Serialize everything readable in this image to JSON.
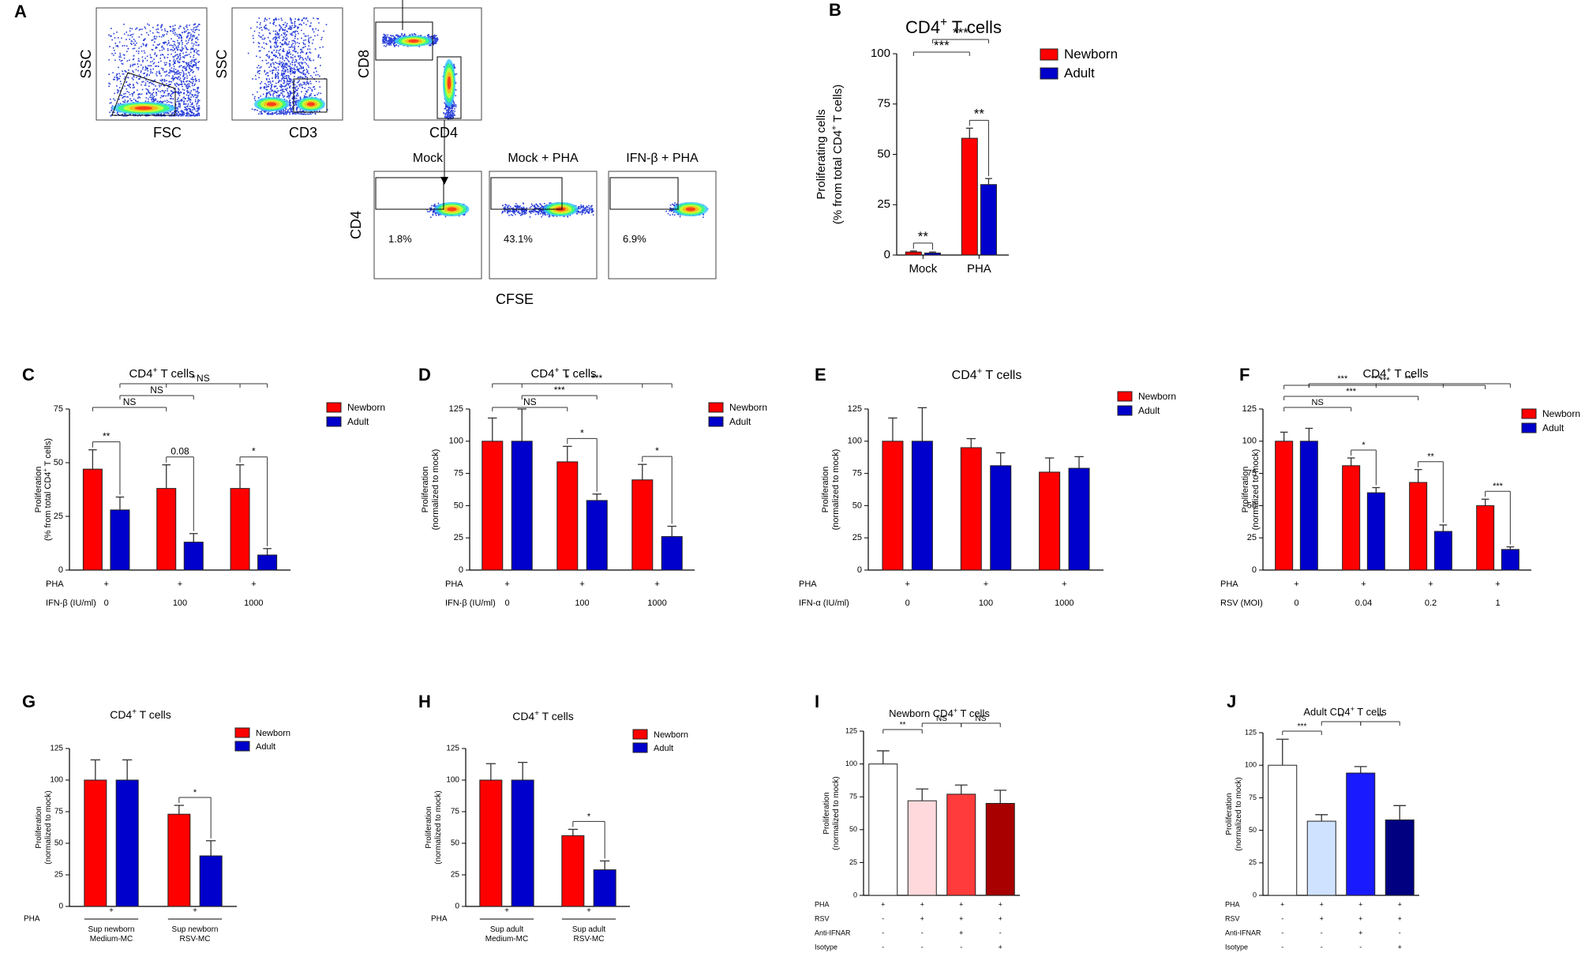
{
  "colors": {
    "newborn": "#ff0000",
    "adult": "#0000cc",
    "white": "#ffffff",
    "light_pink": "#ffd9dc",
    "bright_red": "#ff3b3b",
    "dark_red": "#a80000",
    "light_blue": "#cfe2ff",
    "bright_blue": "#1a1aff",
    "navy": "#000080"
  },
  "flow_panel": {
    "label": "A",
    "plots": [
      {
        "x_label": "FSC",
        "y_label": "SSC"
      },
      {
        "x_label": "CD3",
        "y_label": "SSC"
      },
      {
        "x_label": "CD4",
        "y_label": "CD8"
      }
    ],
    "sub_titles": [
      "Mock",
      "Mock + PHA",
      "IFN-β + PHA"
    ],
    "percentages": [
      "1.8%",
      "43.1%",
      "6.9%"
    ],
    "bottom_y_label": "CD4",
    "bottom_x_label": "CFSE"
  },
  "chart_data": [
    {
      "id": "B",
      "label": "B",
      "type": "bar",
      "title": "CD4",
      "title_sup": "+",
      "title_after": " T cells",
      "ylabel": "Proliferating cells",
      "ylabel2_pre": "(% from total CD4",
      "ylabel2_sup": "+",
      "ylabel2_post": " T cells)",
      "ylim": [
        0,
        100
      ],
      "yticks": [
        "0",
        "25",
        "50",
        "75",
        "100"
      ],
      "groups": [
        "Mock",
        "PHA"
      ],
      "series": [
        {
          "name": "Newborn",
          "values": [
            1.5,
            58
          ],
          "errors": [
            0.5,
            5
          ]
        },
        {
          "name": "Adult",
          "values": [
            1.0,
            35
          ],
          "errors": [
            0.5,
            3
          ]
        }
      ],
      "significance": [
        {
          "text": "**",
          "from": "0.0",
          "to": "0.1"
        },
        {
          "text": "***",
          "from": "0.0",
          "to": "1.0"
        },
        {
          "text": "***",
          "from": "0.1",
          "to": "1.1"
        },
        {
          "text": "**",
          "from": "1.0",
          "to": "1.1"
        }
      ]
    },
    {
      "id": "C",
      "label": "C",
      "type": "bar",
      "title": "CD4",
      "title_sup": "+",
      "title_after": " T cells",
      "ylabel": "Proliferation",
      "ylabel2_pre": "(% from total CD4",
      "ylabel2_sup": "+",
      "ylabel2_post": " T cells)",
      "ylim": [
        0,
        75
      ],
      "yticks": [
        "0",
        "25",
        "50",
        "75"
      ],
      "condition_rows": [
        {
          "name": "PHA",
          "values": [
            "+",
            "+",
            "+"
          ]
        },
        {
          "name": "IFN-β (IU/ml)",
          "values": [
            "0",
            "100",
            "1000"
          ]
        }
      ],
      "series": [
        {
          "name": "Newborn",
          "values": [
            47,
            38,
            38
          ],
          "errors": [
            9,
            11,
            11
          ]
        },
        {
          "name": "Adult",
          "values": [
            28,
            13,
            7
          ],
          "errors": [
            6,
            4,
            3
          ]
        }
      ],
      "significance": [
        {
          "text": "**",
          "from": "0.0",
          "to": "0.1"
        },
        {
          "text": "0.08",
          "from": "1.0",
          "to": "1.1"
        },
        {
          "text": "*",
          "from": "2.0",
          "to": "2.1"
        },
        {
          "text": "NS",
          "from": "0.0",
          "to": "1.0"
        },
        {
          "text": "NS",
          "from": "0.1",
          "to": "1.1"
        },
        {
          "text": "NS",
          "from": "1.0",
          "to": "2.0"
        },
        {
          "text": "*",
          "from": "0.1",
          "to": "2.1"
        }
      ]
    },
    {
      "id": "D",
      "label": "D",
      "type": "bar",
      "title": "CD4",
      "title_sup": "+",
      "title_after": " T cells",
      "ylabel": "Proliferation",
      "ylabel2_pre": "(normalized to mock)",
      "ylabel2_sup": "",
      "ylabel2_post": "",
      "ylim": [
        0,
        125
      ],
      "yticks": [
        "0",
        "25",
        "50",
        "75",
        "100",
        "125"
      ],
      "condition_rows": [
        {
          "name": "PHA",
          "values": [
            "+",
            "+",
            "+"
          ]
        },
        {
          "name": "IFN-β (IU/ml)",
          "values": [
            "0",
            "100",
            "1000"
          ]
        }
      ],
      "series": [
        {
          "name": "Newborn",
          "values": [
            100,
            84,
            70
          ],
          "errors": [
            18,
            12,
            12
          ]
        },
        {
          "name": "Adult",
          "values": [
            100,
            54,
            26
          ],
          "errors": [
            25,
            5,
            8
          ]
        }
      ],
      "significance": [
        {
          "text": "*",
          "from": "1.0",
          "to": "1.1"
        },
        {
          "text": "*",
          "from": "2.0",
          "to": "2.1"
        },
        {
          "text": "NS",
          "from": "0.0",
          "to": "1.0"
        },
        {
          "text": "***",
          "from": "0.1",
          "to": "1.1"
        },
        {
          "text": "***",
          "from": "0.1",
          "to": "2.1"
        },
        {
          "text": "*",
          "from": "0.0",
          "to": "2.0"
        }
      ]
    },
    {
      "id": "E",
      "label": "E",
      "type": "bar",
      "title": "CD4",
      "title_sup": "+",
      "title_after": " T cells",
      "ylabel": "Proliferation",
      "ylabel2_pre": "(normalized to mock)",
      "ylabel2_sup": "",
      "ylabel2_post": "",
      "ylim": [
        0,
        125
      ],
      "yticks": [
        "0",
        "25",
        "50",
        "75",
        "100",
        "125"
      ],
      "condition_rows": [
        {
          "name": "PHA",
          "values": [
            "+",
            "+",
            "+"
          ]
        },
        {
          "name": "IFN-α (IU/ml)",
          "values": [
            "0",
            "100",
            "1000"
          ]
        }
      ],
      "series": [
        {
          "name": "Newborn",
          "values": [
            100,
            95,
            76
          ],
          "errors": [
            18,
            7,
            11
          ]
        },
        {
          "name": "Adult",
          "values": [
            100,
            81,
            79
          ],
          "errors": [
            26,
            10,
            9
          ]
        }
      ],
      "significance": []
    },
    {
      "id": "F",
      "label": "F",
      "type": "bar",
      "title": "CD4",
      "title_sup": "+",
      "title_after": " T cells",
      "ylabel": "Proliferation",
      "ylabel2_pre": "(normalized to mock)",
      "ylabel2_sup": "",
      "ylabel2_post": "",
      "ylim": [
        0,
        125
      ],
      "yticks": [
        "0",
        "25",
        "50",
        "75",
        "100",
        "125"
      ],
      "condition_rows": [
        {
          "name": "PHA",
          "values": [
            "+",
            "+",
            "+",
            "+"
          ]
        },
        {
          "name": "RSV (MOI)",
          "values": [
            "0",
            "0.04",
            "0.2",
            "1"
          ]
        }
      ],
      "series": [
        {
          "name": "Newborn",
          "values": [
            100,
            81,
            68,
            50
          ],
          "errors": [
            7,
            6,
            10,
            5
          ]
        },
        {
          "name": "Adult",
          "values": [
            100,
            60,
            30,
            16
          ],
          "errors": [
            10,
            4,
            5,
            2
          ]
        }
      ],
      "significance": [
        {
          "text": "*",
          "from": "1.0",
          "to": "1.1"
        },
        {
          "text": "**",
          "from": "2.0",
          "to": "2.1"
        },
        {
          "text": "***",
          "from": "3.0",
          "to": "3.1"
        },
        {
          "text": "NS",
          "from": "0.0",
          "to": "1.0"
        },
        {
          "text": "***",
          "from": "0.0",
          "to": "2.0"
        },
        {
          "text": "***",
          "from": "0.0",
          "to": "3.0"
        },
        {
          "text": "***",
          "from": "0.1",
          "to": "1.1"
        },
        {
          "text": "***",
          "from": "0.1",
          "to": "2.1"
        },
        {
          "text": "***",
          "from": "0.1",
          "to": "3.1"
        }
      ]
    },
    {
      "id": "G",
      "label": "G",
      "type": "bar",
      "title": "CD4",
      "title_sup": "+",
      "title_after": " T cells",
      "ylabel": "Proliferation",
      "ylabel2_pre": "(normalized to mock)",
      "ylabel2_sup": "",
      "ylabel2_post": "",
      "ylim": [
        0,
        125
      ],
      "yticks": [
        "0",
        "25",
        "50",
        "75",
        "100",
        "125"
      ],
      "pha_row": {
        "name": "PHA",
        "values": [
          "+",
          "+"
        ]
      },
      "group_labels": [
        [
          "Sup newborn",
          "Medium-MC"
        ],
        [
          "Sup newborn",
          "RSV-MC"
        ]
      ],
      "series": [
        {
          "name": "Newborn",
          "values": [
            100,
            73
          ],
          "errors": [
            16,
            7
          ]
        },
        {
          "name": "Adult",
          "values": [
            100,
            40
          ],
          "errors": [
            16,
            12
          ]
        }
      ],
      "significance": [
        {
          "text": "*",
          "from": "1.0",
          "to": "1.1"
        }
      ]
    },
    {
      "id": "H",
      "label": "H",
      "type": "bar",
      "title": "CD4",
      "title_sup": "+",
      "title_after": " T cells",
      "ylabel": "Proliferation",
      "ylabel2_pre": "(normalized to mock)",
      "ylabel2_sup": "",
      "ylabel2_post": "",
      "ylim": [
        0,
        125
      ],
      "yticks": [
        "0",
        "25",
        "50",
        "75",
        "100",
        "125"
      ],
      "pha_row": {
        "name": "PHA",
        "values": [
          "+",
          "+"
        ]
      },
      "group_labels": [
        [
          "Sup adult",
          "Medium-MC"
        ],
        [
          "Sup adult",
          "RSV-MC"
        ]
      ],
      "series": [
        {
          "name": "Newborn",
          "values": [
            100,
            56
          ],
          "errors": [
            13,
            5
          ]
        },
        {
          "name": "Adult",
          "values": [
            100,
            29
          ],
          "errors": [
            14,
            7
          ]
        }
      ],
      "significance": [
        {
          "text": "*",
          "from": "1.0",
          "to": "1.1"
        }
      ]
    },
    {
      "id": "I",
      "label": "I",
      "type": "bar",
      "title": "Newborn CD4",
      "title_sup": "+",
      "title_after": " T cells",
      "ylabel": "Proliferation",
      "ylabel2_pre": "(normalized to mock)",
      "ylabel2_sup": "",
      "ylabel2_post": "",
      "ylim": [
        0,
        125
      ],
      "yticks": [
        "0",
        "25",
        "50",
        "75",
        "100",
        "125"
      ],
      "bars": [
        {
          "value": 100,
          "error": 10,
          "color": "#ffffff"
        },
        {
          "value": 72,
          "error": 9,
          "color": "#ffd9dc"
        },
        {
          "value": 77,
          "error": 7,
          "color": "#ff3b3b"
        },
        {
          "value": 70,
          "error": 10,
          "color": "#a80000"
        }
      ],
      "condition_rows": [
        {
          "name": "PHA",
          "values": [
            "+",
            "+",
            "+",
            "+"
          ]
        },
        {
          "name": "RSV",
          "values": [
            "-",
            "+",
            "+",
            "+"
          ]
        },
        {
          "name": "Anti-IFNAR",
          "values": [
            "-",
            "-",
            "+",
            "-"
          ]
        },
        {
          "name": "Isotype",
          "values": [
            "-",
            "-",
            "-",
            "+"
          ]
        }
      ],
      "significance": [
        {
          "text": "**",
          "from": "0",
          "to": "1"
        },
        {
          "text": "NS",
          "from": "1",
          "to": "2"
        },
        {
          "text": "NS",
          "from": "2",
          "to": "3"
        }
      ]
    },
    {
      "id": "J",
      "label": "J",
      "type": "bar",
      "title": "Adult CD4",
      "title_sup": "+",
      "title_after": " T cells",
      "ylabel": "Proliferation",
      "ylabel2_pre": "(normalized to mock)",
      "ylabel2_sup": "",
      "ylabel2_post": "",
      "ylim": [
        0,
        125
      ],
      "yticks": [
        "0",
        "25",
        "50",
        "75",
        "100",
        "125"
      ],
      "bars": [
        {
          "value": 100,
          "error": 20,
          "color": "#ffffff"
        },
        {
          "value": 57,
          "error": 5,
          "color": "#cfe2ff"
        },
        {
          "value": 94,
          "error": 5,
          "color": "#1a1aff"
        },
        {
          "value": 58,
          "error": 11,
          "color": "#000080"
        }
      ],
      "condition_rows": [
        {
          "name": "PHA",
          "values": [
            "+",
            "+",
            "+",
            "+"
          ]
        },
        {
          "name": "RSV",
          "values": [
            "-",
            "+",
            "+",
            "+"
          ]
        },
        {
          "name": "Anti-IFNAR",
          "values": [
            "-",
            "-",
            "+",
            "-"
          ]
        },
        {
          "name": "Isotype",
          "values": [
            "-",
            "-",
            "-",
            "+"
          ]
        }
      ],
      "significance": [
        {
          "text": "***",
          "from": "0",
          "to": "1"
        },
        {
          "text": "**",
          "from": "1",
          "to": "2"
        },
        {
          "text": "**",
          "from": "2",
          "to": "3"
        }
      ]
    }
  ]
}
